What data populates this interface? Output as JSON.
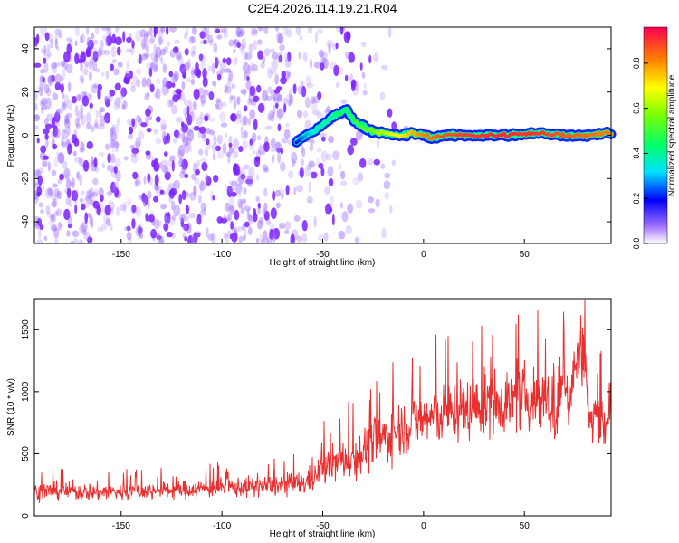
{
  "title": "C2E4.2026.114.19.21.R04",
  "chart_data": [
    {
      "type": "heatmap",
      "name": "spectrogram",
      "xlabel": "Height of straight line (km)",
      "ylabel": "Frequency (Hz)",
      "xlim": [
        -193,
        93
      ],
      "ylim": [
        -50,
        50
      ],
      "xticks": [
        -150,
        -100,
        -50,
        0,
        50
      ],
      "yticks": [
        -40,
        -20,
        0,
        20,
        40
      ],
      "colorbar": {
        "label": "Normalized spectral amplitude",
        "range": [
          0.0,
          0.96
        ],
        "ticks": [
          0.0,
          0.2,
          0.4,
          0.6,
          0.8
        ],
        "tick_labels": [
          "0.0",
          "0.2",
          "0.4",
          "0.6",
          "0.8"
        ]
      },
      "ridge": {
        "description_values": "dominant frequency line (Hz) vs height (km), normalized amplitude",
        "x": [
          -63,
          -58,
          -54,
          -50,
          -46,
          -42,
          -38,
          -34,
          -30,
          -25,
          -20,
          -15,
          -10,
          -5,
          0,
          5,
          10,
          20,
          40,
          60,
          70,
          80,
          90
        ],
        "y": [
          -3,
          0,
          2,
          5,
          8,
          10,
          12,
          6,
          4,
          2,
          1,
          0,
          0,
          1,
          0,
          -1,
          0,
          0,
          0,
          1,
          0,
          0,
          1
        ],
        "amp": [
          0.2,
          0.3,
          0.35,
          0.4,
          0.4,
          0.45,
          0.45,
          0.5,
          0.55,
          0.6,
          0.65,
          0.7,
          0.75,
          0.8,
          0.85,
          0.88,
          0.9,
          0.93,
          0.95,
          0.93,
          0.9,
          0.88,
          0.85
        ]
      }
    },
    {
      "type": "line",
      "name": "snr",
      "xlabel": "Height of straight line (km)",
      "ylabel": "SNR (10 * v/v)",
      "xlim": [
        -193,
        93
      ],
      "ylim": [
        0,
        1750
      ],
      "xticks": [
        -150,
        -100,
        -50,
        0,
        50
      ],
      "yticks": [
        0,
        500,
        1000,
        1500
      ],
      "color": "#e83030",
      "series": [
        {
          "name": "SNR",
          "x": [
            -193,
            -180,
            -160,
            -140,
            -120,
            -100,
            -90,
            -80,
            -70,
            -60,
            -55,
            -50,
            -45,
            -40,
            -35,
            -30,
            -25,
            -20,
            -15,
            -10,
            -5,
            0,
            5,
            10,
            15,
            20,
            25,
            30,
            35,
            40,
            45,
            50,
            55,
            60,
            62,
            65,
            70,
            72,
            75,
            78,
            80,
            82,
            85,
            88,
            90,
            93
          ],
          "mean": [
            200,
            200,
            190,
            200,
            210,
            230,
            230,
            240,
            250,
            260,
            300,
            380,
            420,
            450,
            470,
            520,
            600,
            620,
            680,
            720,
            740,
            780,
            800,
            820,
            850,
            860,
            880,
            900,
            910,
            920,
            930,
            960,
            950,
            970,
            900,
            700,
            1150,
            900,
            1200,
            1350,
            1300,
            700,
            850,
            800,
            700,
            1000
          ],
          "spread": [
            90,
            90,
            90,
            90,
            90,
            95,
            100,
            100,
            110,
            120,
            140,
            170,
            190,
            200,
            220,
            240,
            260,
            270,
            280,
            280,
            290,
            300,
            300,
            300,
            300,
            310,
            310,
            320,
            320,
            320,
            320,
            320,
            320,
            330,
            300,
            280,
            300,
            280,
            320,
            340,
            330,
            250,
            250,
            250,
            250,
            320
          ]
        }
      ]
    }
  ]
}
